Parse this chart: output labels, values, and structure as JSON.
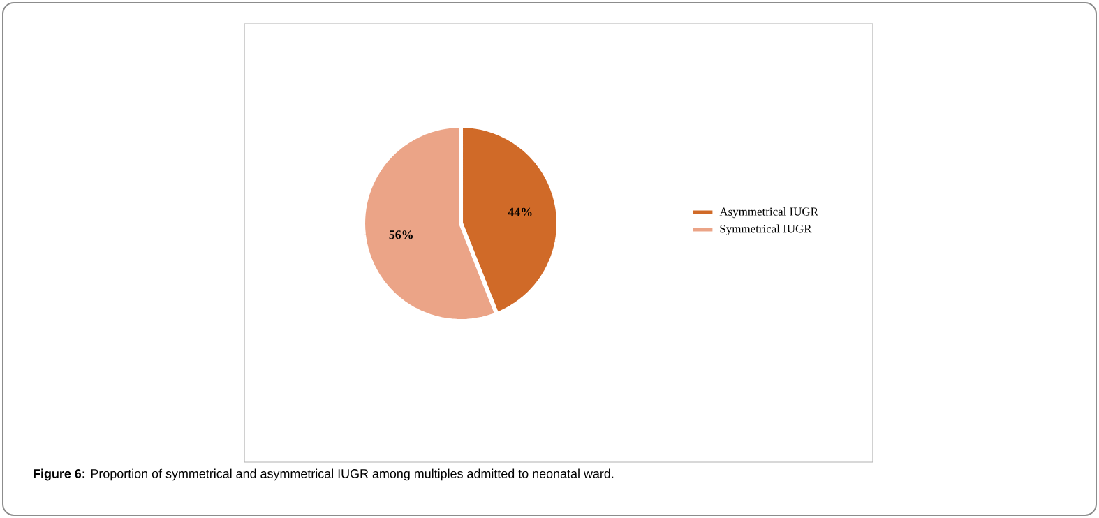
{
  "chart_data": {
    "type": "pie",
    "categories": [
      "Asymmetrical IUGR",
      "Symmetrical IUGR"
    ],
    "values": [
      44,
      56
    ],
    "colors": [
      "#d06a28",
      "#eba487"
    ],
    "value_labels": [
      "44%",
      "56%"
    ],
    "legend": "right",
    "annotations": [
      "**Figure 6:** Proportion of symmetrical and asymmetrical IUGR among multiples admitted to neonatal ward."
    ]
  }
}
